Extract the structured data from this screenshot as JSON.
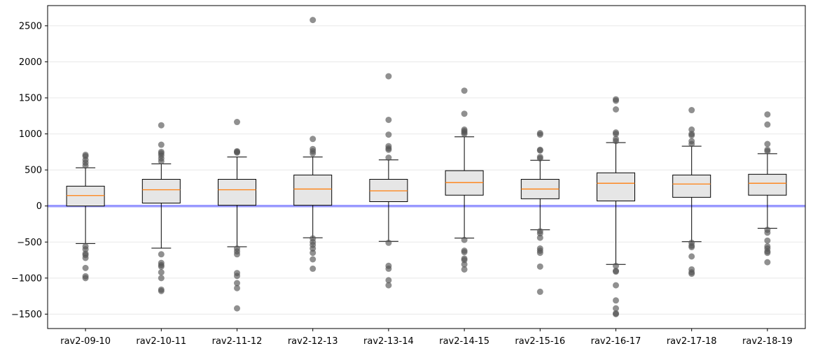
{
  "chart_data": {
    "type": "box",
    "title": "",
    "xlabel": "",
    "ylabel": "",
    "ylim": [
      -1700,
      2780
    ],
    "yticks": [
      -1500,
      -1000,
      -500,
      0,
      500,
      1000,
      1500,
      2000,
      2500
    ],
    "ytick_labels": [
      "−1500",
      "−1000",
      "−500",
      "0",
      "500",
      "1000",
      "1500",
      "2000",
      "2500"
    ],
    "grid": "horizontal, light",
    "reference_line": {
      "y": 0,
      "color": "#9999ff"
    },
    "colors": {
      "box_fill": "#e6e6e6",
      "median": "#ff7f0e",
      "outlier": "#555555",
      "edge": "#000000"
    },
    "categories": [
      "rav2-09-10",
      "rav2-10-11",
      "rav2-11-12",
      "rav2-12-13",
      "rav2-13-14",
      "rav2-14-15",
      "rav2-15-16",
      "rav2-16-17",
      "rav2-17-18",
      "rav2-18-19"
    ],
    "boxes": [
      {
        "whisker_low": -520,
        "q1": 0,
        "median": 145,
        "q3": 275,
        "whisker_high": 530,
        "outliers": [
          560,
          600,
          640,
          690,
          710,
          -560,
          -600,
          -660,
          -680,
          -720,
          -860,
          -975,
          -1000
        ]
      },
      {
        "whisker_low": -585,
        "q1": 40,
        "median": 225,
        "q3": 370,
        "whisker_high": 585,
        "outliers": [
          620,
          660,
          700,
          730,
          750,
          850,
          1120,
          -670,
          -790,
          -820,
          -840,
          -920,
          -1000,
          -1160,
          -1180
        ]
      },
      {
        "whisker_low": -565,
        "q1": 10,
        "median": 225,
        "q3": 370,
        "whisker_high": 680,
        "outliers": [
          740,
          750,
          760,
          1165,
          -590,
          -630,
          -670,
          -930,
          -970,
          -1070,
          -1140,
          -1420
        ]
      },
      {
        "whisker_low": -440,
        "q1": 10,
        "median": 235,
        "q3": 430,
        "whisker_high": 680,
        "outliers": [
          730,
          760,
          790,
          930,
          2580,
          -450,
          -500,
          -540,
          -590,
          -650,
          -740,
          -870
        ]
      },
      {
        "whisker_low": -490,
        "q1": 60,
        "median": 210,
        "q3": 370,
        "whisker_high": 640,
        "outliers": [
          670,
          780,
          800,
          830,
          990,
          1195,
          1800,
          -510,
          -830,
          -870,
          -1030,
          -1100
        ]
      },
      {
        "whisker_low": -445,
        "q1": 150,
        "median": 325,
        "q3": 490,
        "whisker_high": 960,
        "outliers": [
          1000,
          1020,
          1040,
          1060,
          1280,
          1600,
          -470,
          -620,
          -640,
          -730,
          -750,
          -810,
          -880
        ]
      },
      {
        "whisker_low": -330,
        "q1": 100,
        "median": 235,
        "q3": 370,
        "whisker_high": 635,
        "outliers": [
          660,
          680,
          770,
          780,
          990,
          1010,
          -350,
          -380,
          -440,
          -590,
          -620,
          -650,
          -840,
          -1190
        ]
      },
      {
        "whisker_low": -810,
        "q1": 70,
        "median": 315,
        "q3": 460,
        "whisker_high": 880,
        "outliers": [
          900,
          930,
          1000,
          1020,
          1340,
          1460,
          1480,
          -830,
          -900,
          -910,
          -1100,
          -1310,
          -1420,
          -1490,
          -1500
        ]
      },
      {
        "whisker_low": -495,
        "q1": 120,
        "median": 305,
        "q3": 430,
        "whisker_high": 830,
        "outliers": [
          860,
          900,
          980,
          1000,
          1060,
          1330,
          -510,
          -550,
          -570,
          -700,
          -880,
          -920,
          -940
        ]
      },
      {
        "whisker_low": -310,
        "q1": 150,
        "median": 315,
        "q3": 440,
        "whisker_high": 725,
        "outliers": [
          760,
          780,
          860,
          1130,
          1270,
          -330,
          -370,
          -480,
          -560,
          -590,
          -630,
          -650,
          -780
        ]
      }
    ]
  }
}
